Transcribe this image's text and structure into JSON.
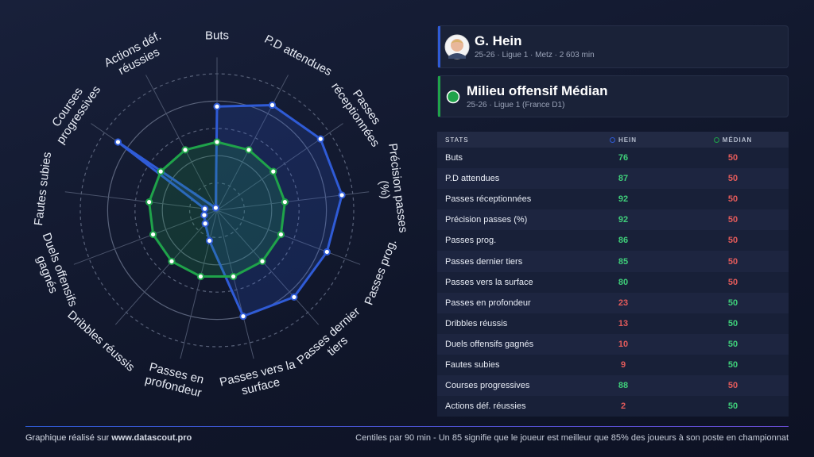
{
  "player": {
    "name": "G. Hein",
    "meta": "25-26 · Ligue 1 · Metz · 2 603 min"
  },
  "comparison": {
    "name": "Milieu offensif Médian",
    "meta": "25-26 · Ligue 1 (France D1)"
  },
  "chart_data": {
    "type": "radar",
    "categories": [
      "Buts",
      "P.D attendues",
      "Passes réceptionnées",
      "Précision passes (%)",
      "Passes prog.",
      "Passes dernier tiers",
      "Passes vers la surface",
      "Passes en profondeur",
      "Dribbles réussis",
      "Duels offensifs gagnés",
      "Fautes subies",
      "Courses progressives",
      "Actions déf. réussies"
    ],
    "series": [
      {
        "name": "HEIN",
        "color": "#2f5bd6",
        "values": [
          76,
          87,
          92,
          92,
          86,
          85,
          80,
          23,
          13,
          10,
          9,
          88,
          2
        ]
      },
      {
        "name": "MÉDIAN",
        "color": "#1fa34a",
        "values": [
          50,
          50,
          50,
          50,
          50,
          50,
          50,
          50,
          50,
          50,
          50,
          50,
          50
        ]
      }
    ],
    "rlim": [
      0,
      100
    ],
    "rticks": [
      20,
      40,
      60,
      80,
      100
    ]
  },
  "table": {
    "header": "STATS"
  },
  "footer": {
    "credit": "Graphique réalisé sur",
    "site": "www.datascout.pro",
    "note": "Centiles par 90 min - Un 85 signifie que le joueur est meilleur que 85% des joueurs à son poste en championnat"
  }
}
